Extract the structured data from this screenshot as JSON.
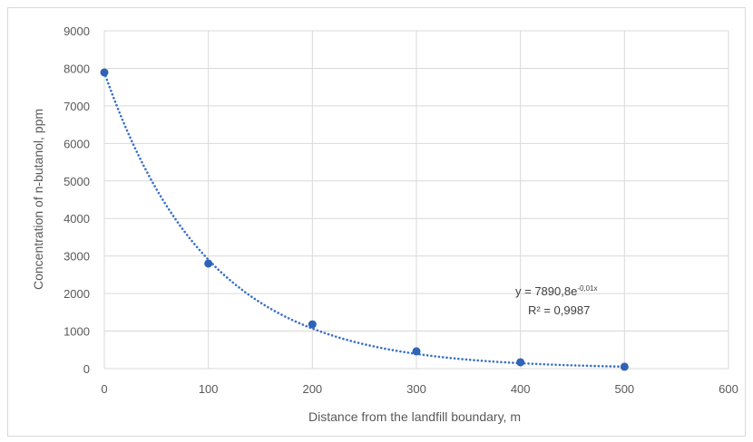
{
  "chart_data": {
    "type": "scatter",
    "title": "",
    "xlabel": "Distance from the landfill boundary, m",
    "ylabel": "Concentration of n-butanol, ppm",
    "xlim": [
      0,
      600
    ],
    "ylim": [
      0,
      9000
    ],
    "x_ticks": [
      0,
      100,
      200,
      300,
      400,
      500,
      600
    ],
    "y_ticks": [
      0,
      1000,
      2000,
      3000,
      4000,
      5000,
      6000,
      7000,
      8000,
      9000
    ],
    "grid": true,
    "legend": "none",
    "series": [
      {
        "x": [
          0,
          100,
          200,
          300,
          400,
          500
        ],
        "y": [
          7890,
          2800,
          1180,
          460,
          170,
          50
        ],
        "color": "#2e63b8",
        "marker": "circle"
      }
    ],
    "trendline": {
      "type": "exponential",
      "a": 7890.8,
      "b": -0.01,
      "style": "dotted",
      "color": "#3a6fc8",
      "equation_main": "y = 7890,8e",
      "equation_exp": "-0,01x",
      "r2_label": "R² = 0,9987"
    },
    "colors": {
      "grid": "#d9d9d9",
      "tick_text": "#595959",
      "marker": "#2e63b8"
    }
  }
}
